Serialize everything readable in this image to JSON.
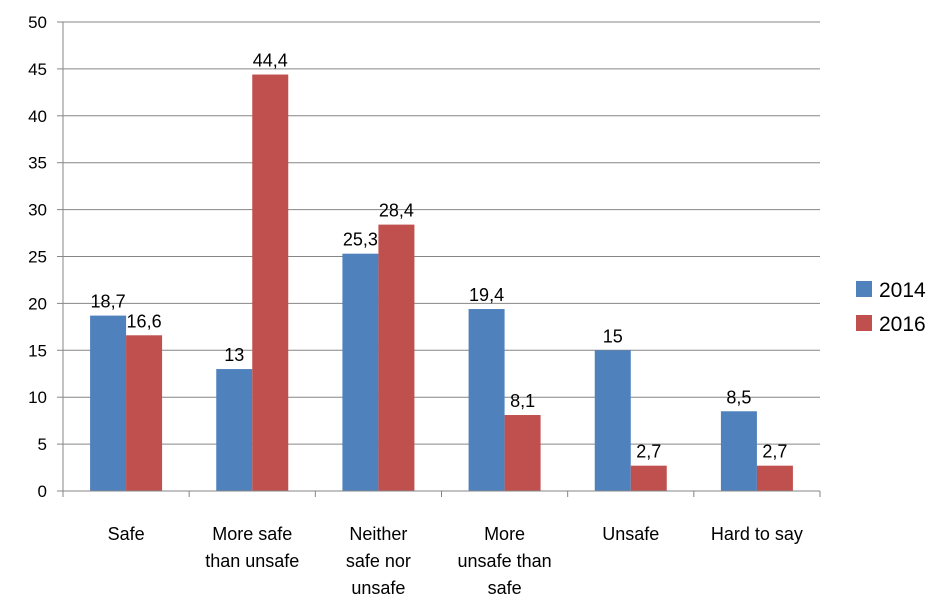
{
  "chart_data": {
    "type": "bar",
    "categories": [
      [
        "Safe"
      ],
      [
        "More safe",
        "than unsafe"
      ],
      [
        "Neither",
        "safe nor",
        "unsafe"
      ],
      [
        "More",
        "unsafe than",
        "safe"
      ],
      [
        "Unsafe"
      ],
      [
        "Hard to say"
      ]
    ],
    "series": [
      {
        "name": "2014",
        "color": "#4F81BD",
        "values": [
          18.7,
          13,
          25.3,
          19.4,
          15,
          8.5
        ],
        "labels": [
          "18,7",
          "13",
          "25,3",
          "19,4",
          "15",
          "8,5"
        ]
      },
      {
        "name": "2016",
        "color": "#C0504D",
        "values": [
          16.6,
          44.4,
          28.4,
          8.1,
          2.7,
          2.7
        ],
        "labels": [
          "16,6",
          "44,4",
          "28,4",
          "8,1",
          "2,7",
          "2,7"
        ]
      }
    ],
    "y_ticks": [
      "0",
      "5",
      "10",
      "15",
      "20",
      "25",
      "30",
      "35",
      "40",
      "45",
      "50"
    ],
    "ylim": [
      0,
      50
    ],
    "grid": true,
    "legend_position": "right"
  }
}
